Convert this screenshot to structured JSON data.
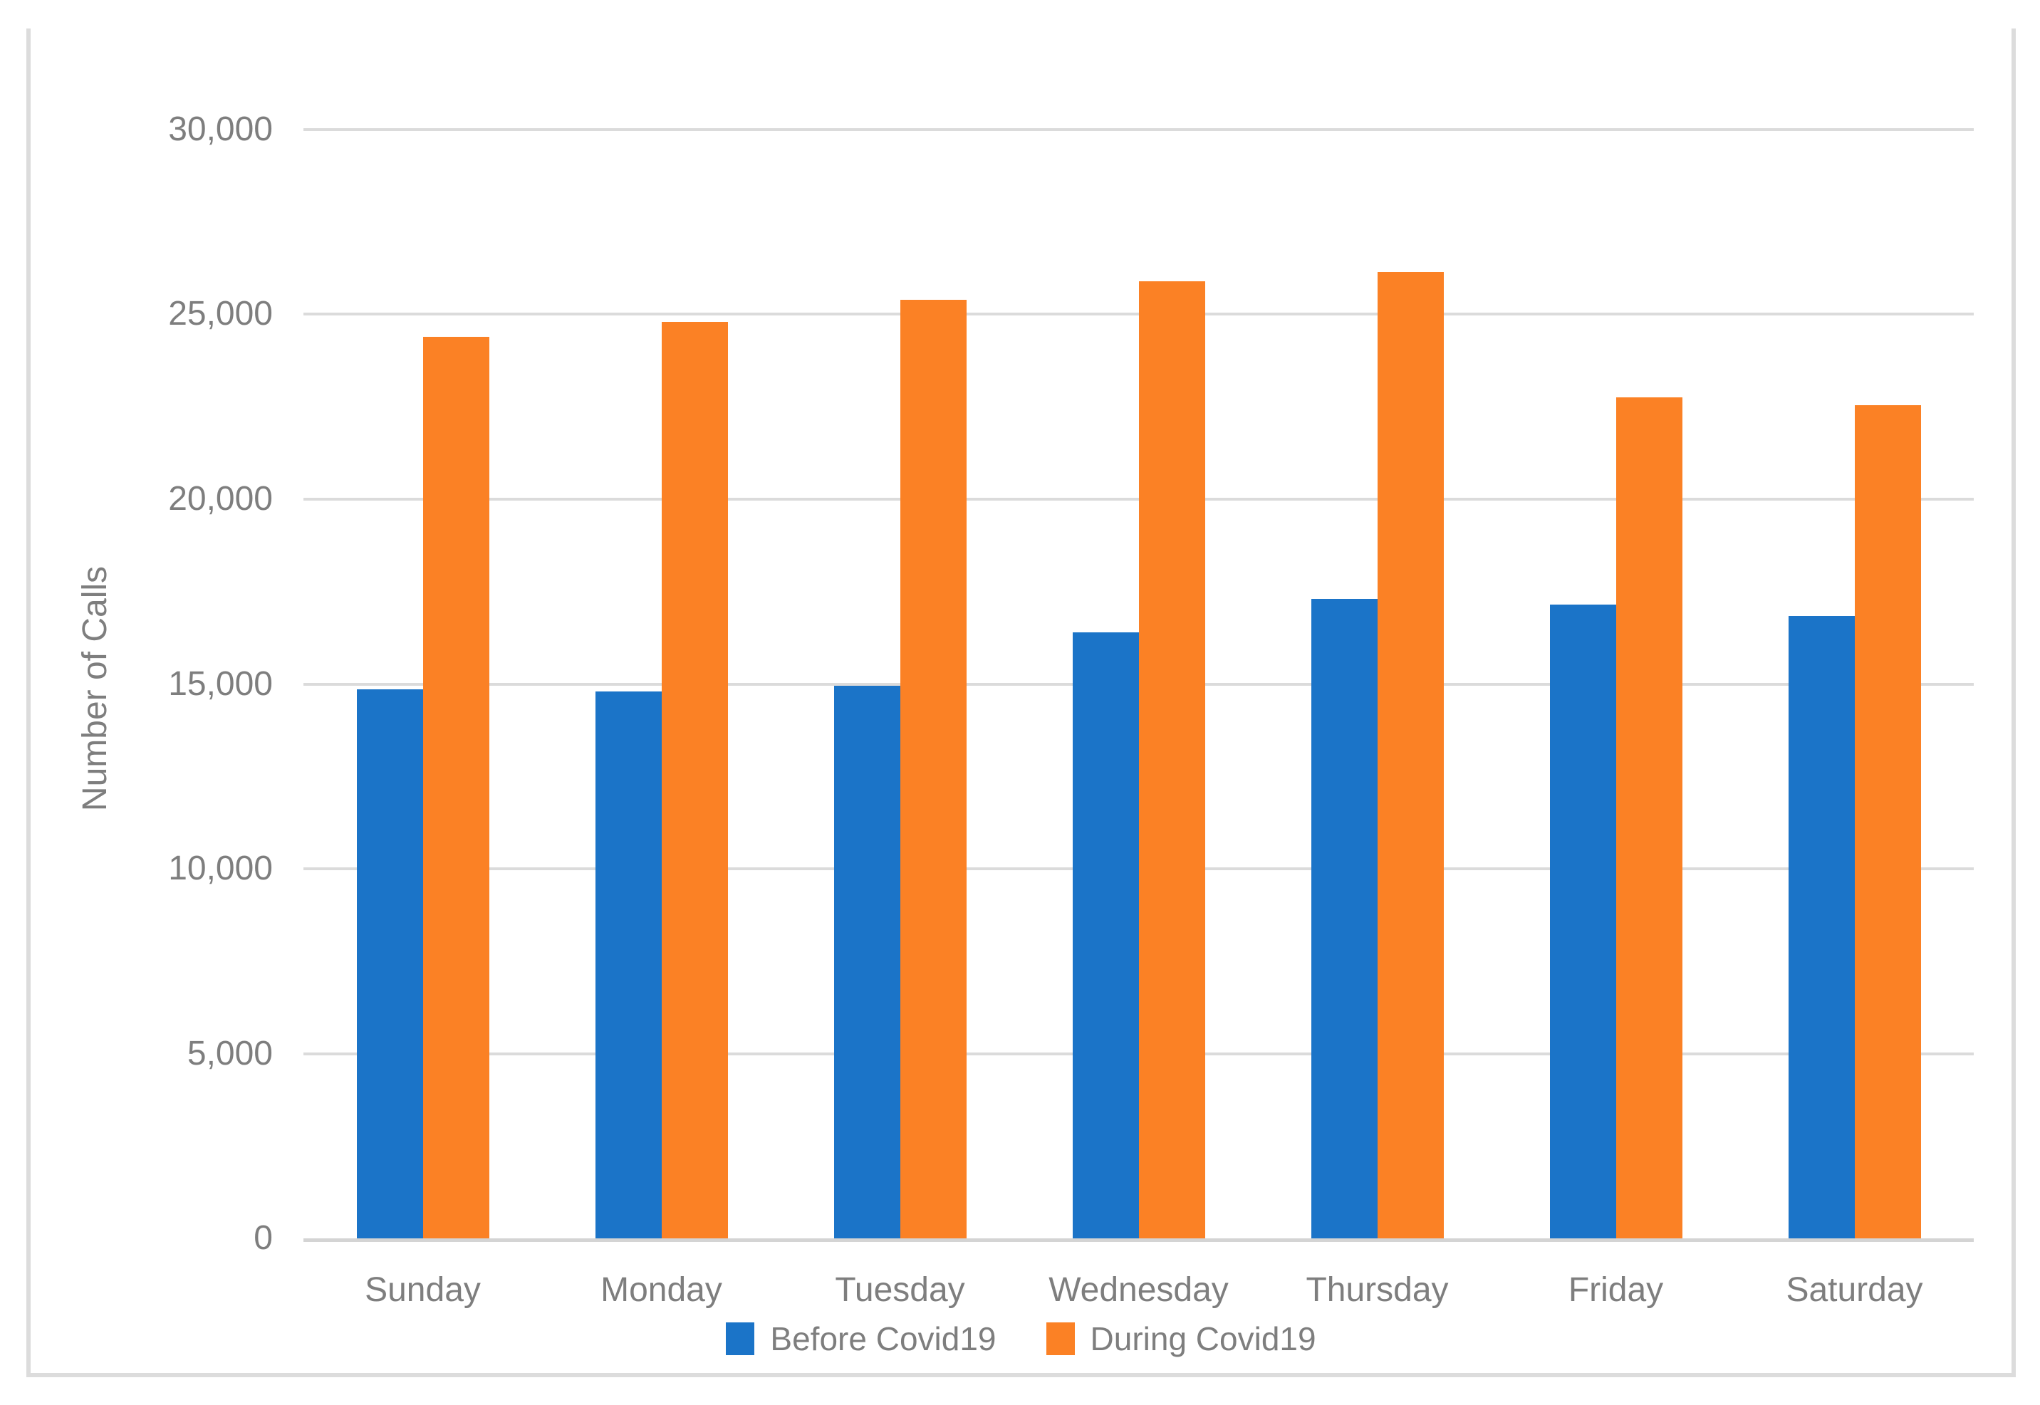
{
  "figure": {
    "background": "#FFFFFF",
    "frame_border_color": "#DCDCDC"
  },
  "chart_data": {
    "type": "bar",
    "title": "",
    "ylabel": "Number of Calls",
    "xlabel": "",
    "categories": [
      "Sunday",
      "Monday",
      "Tuesday",
      "Wednesday",
      "Thursday",
      "Friday",
      "Saturday"
    ],
    "series": [
      {
        "name": "Before Covid19",
        "color": "#1B74C8",
        "values": [
          14850,
          14800,
          14950,
          16400,
          17300,
          17150,
          16850
        ]
      },
      {
        "name": "During Covid19",
        "color": "#FB8125",
        "values": [
          24400,
          24800,
          25400,
          25900,
          26150,
          22750,
          22550
        ]
      }
    ],
    "ylim": [
      0,
      30000
    ],
    "ytick_interval": 5000,
    "ytick_labels": [
      "0",
      "5,000",
      "10,000",
      "15,000",
      "20,000",
      "25,000",
      "30,000"
    ],
    "grid": "horizontal",
    "gridline_color": "#DBDBDB",
    "axis_line_color": "#D4D4D4",
    "axis_text_color": "#7E7E7E",
    "legend_position": "bottom-center"
  }
}
